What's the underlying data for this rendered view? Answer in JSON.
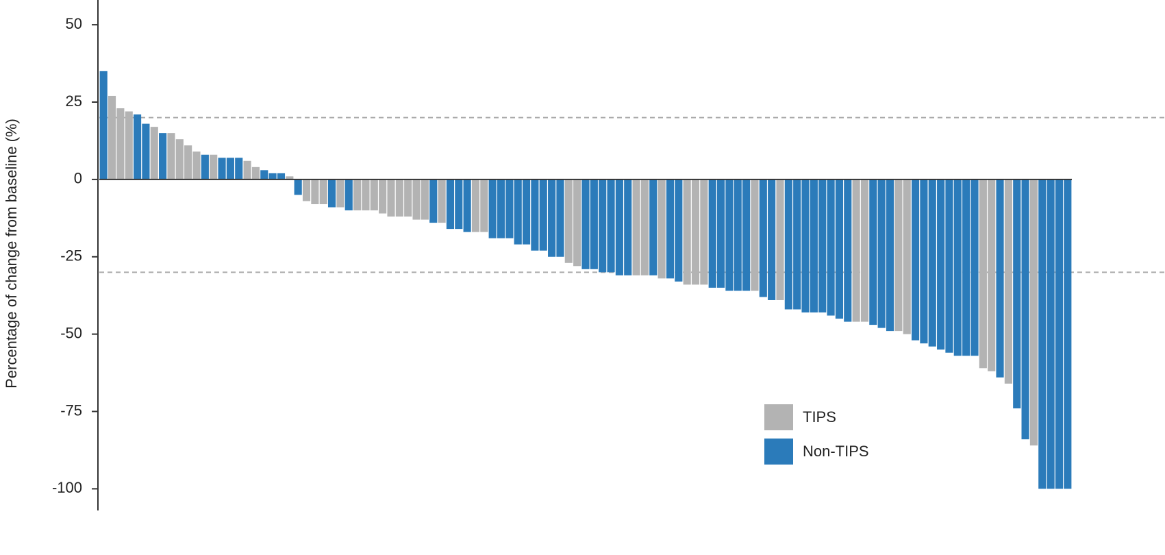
{
  "chart_data": {
    "type": "bar",
    "ylabel": "Percentage of change from baseline (%)",
    "categories": [
      null,
      null,
      null,
      null,
      null,
      null,
      null,
      null,
      null,
      null,
      null,
      null,
      null,
      null,
      null,
      null,
      null,
      null,
      null,
      null,
      null,
      null,
      null,
      null,
      null,
      null,
      null,
      null,
      null,
      null,
      null,
      null,
      null,
      null,
      null,
      null,
      null,
      null,
      null,
      null,
      null,
      null,
      null,
      null,
      null,
      null,
      null,
      null,
      null,
      null,
      null,
      null,
      null,
      null,
      null,
      null,
      null,
      null,
      null,
      null,
      null,
      null,
      null,
      null,
      null,
      null,
      null,
      null,
      null,
      null,
      null,
      null,
      null,
      null,
      null,
      null,
      null,
      null,
      null,
      null,
      null,
      null,
      null,
      null,
      null,
      null,
      null,
      null,
      null,
      null,
      null,
      null,
      null,
      null,
      null,
      null,
      null,
      null,
      null,
      null,
      null,
      null,
      null,
      null,
      null,
      null,
      null,
      null,
      null,
      null,
      null,
      null,
      null,
      null,
      null
    ],
    "series": [
      {
        "name": "TIPS",
        "color": "#b3b3b3",
        "values": [
          null,
          27,
          23,
          22,
          null,
          null,
          17,
          null,
          15,
          13,
          11,
          9,
          null,
          8,
          null,
          null,
          null,
          6,
          4,
          null,
          null,
          null,
          1,
          null,
          -7,
          -8,
          -8,
          null,
          -9,
          null,
          -10,
          -10,
          -10,
          -11,
          -12,
          -12,
          -12,
          -13,
          -13,
          null,
          -14,
          null,
          null,
          null,
          -17,
          -17,
          null,
          null,
          null,
          null,
          null,
          null,
          null,
          null,
          null,
          -27,
          -28,
          null,
          null,
          null,
          null,
          null,
          null,
          -31,
          -31,
          null,
          -32,
          null,
          null,
          -34,
          -34,
          -34,
          null,
          null,
          null,
          null,
          null,
          -36,
          null,
          null,
          -39,
          null,
          null,
          null,
          null,
          null,
          null,
          null,
          null,
          -46,
          -46,
          null,
          null,
          null,
          -49,
          -50,
          null,
          null,
          null,
          null,
          null,
          null,
          null,
          null,
          -61,
          -62,
          null,
          -66,
          null,
          null,
          -86,
          null,
          null,
          null,
          null
        ]
      },
      {
        "name": "Non-TIPS",
        "color": "#2b7bba",
        "values": [
          35,
          null,
          null,
          null,
          21,
          18,
          null,
          15,
          null,
          null,
          null,
          null,
          8,
          null,
          7,
          7,
          7,
          null,
          null,
          3,
          2,
          2,
          null,
          -5,
          null,
          null,
          null,
          -9,
          null,
          -10,
          null,
          null,
          null,
          null,
          null,
          null,
          null,
          null,
          null,
          -14,
          null,
          -16,
          -16,
          -17,
          null,
          null,
          -19,
          -19,
          -19,
          -21,
          -21,
          -23,
          -23,
          -25,
          -25,
          null,
          null,
          -29,
          -29,
          -30,
          -30,
          -31,
          -31,
          null,
          null,
          -31,
          null,
          -32,
          -33,
          null,
          null,
          null,
          -35,
          -35,
          -36,
          -36,
          -36,
          null,
          -38,
          -39,
          null,
          -42,
          -42,
          -43,
          -43,
          -43,
          -44,
          -45,
          -46,
          null,
          null,
          -47,
          -48,
          -49,
          null,
          null,
          -52,
          -53,
          -54,
          -55,
          -56,
          -57,
          -57,
          -57,
          null,
          null,
          -64,
          null,
          -74,
          -84,
          null,
          -100,
          -100,
          -100,
          -100
        ]
      }
    ],
    "ylim": [
      -107,
      58
    ],
    "yticks": [
      50,
      25,
      0,
      -25,
      -50,
      -75,
      -100
    ],
    "hlines": [
      20,
      -30
    ],
    "legend": "lower right"
  }
}
